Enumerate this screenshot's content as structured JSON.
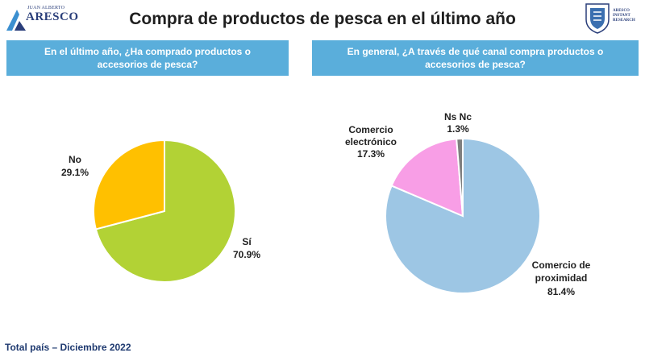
{
  "header": {
    "title": "Compra de productos de pesca en el último año",
    "logo_left_small": "JUAN ALBERTO",
    "logo_left_big": "ARESCO",
    "logo_right_lines": [
      "ARESCO",
      "INSTANT",
      "RESEARCH"
    ]
  },
  "colors": {
    "header_bg": "#5aaedb",
    "footer_text": "#1f3a70"
  },
  "chart_data": [
    {
      "type": "pie",
      "title": "En el último año, ¿Ha comprado productos o accesorios de pesca?",
      "slices": [
        {
          "name": "Sí",
          "value": 70.9,
          "value_label": "70.9%",
          "color": "#b2d235"
        },
        {
          "name": "No",
          "value": 29.1,
          "value_label": "29.1%",
          "color": "#ffc000"
        }
      ]
    },
    {
      "type": "pie",
      "title": "En general, ¿A través de qué canal compra productos o accesorios de pesca?",
      "slices": [
        {
          "name": "Comercio de proximidad",
          "name_lines": [
            "Comercio de",
            "proximidad"
          ],
          "value": 81.4,
          "value_label": "81.4%",
          "color": "#9dc6e4"
        },
        {
          "name": "Comercio electrónico",
          "name_lines": [
            "Comercio",
            "electrónico"
          ],
          "value": 17.3,
          "value_label": "17.3%",
          "color": "#f89ee6"
        },
        {
          "name": "Ns Nc",
          "name_lines": [
            "Ns Nc"
          ],
          "value": 1.3,
          "value_label": "1.3%",
          "color": "#7f7f7f"
        }
      ]
    }
  ],
  "footer": {
    "text": "Total país – Diciembre 2022"
  }
}
